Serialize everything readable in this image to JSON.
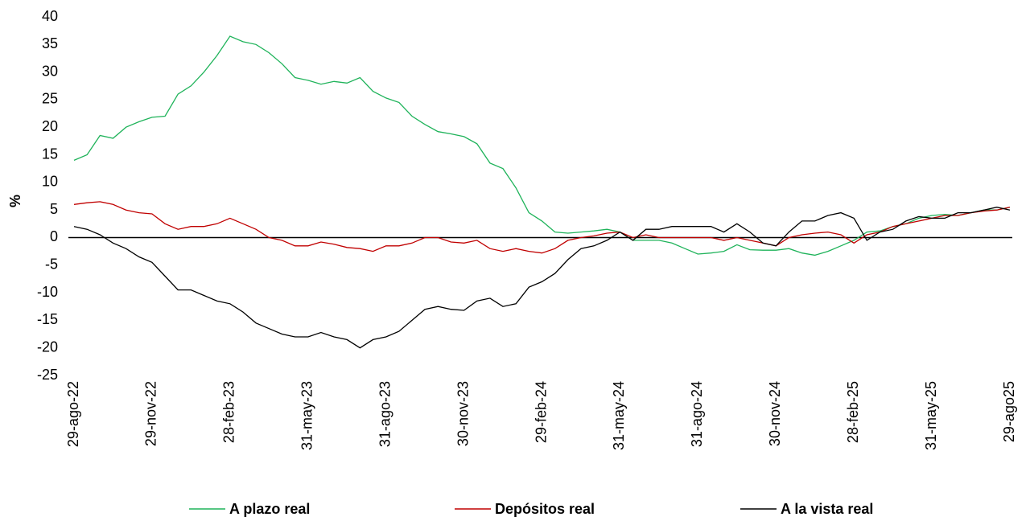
{
  "chart_data": {
    "type": "line",
    "y_label": "%",
    "categories": [
      "29-ago-22",
      null,
      null,
      null,
      null,
      null,
      "29-nov-22",
      null,
      null,
      null,
      null,
      null,
      "28-feb-23",
      null,
      null,
      null,
      null,
      null,
      "31-may-23",
      null,
      null,
      null,
      null,
      null,
      "31-ago-23",
      null,
      null,
      null,
      null,
      null,
      "30-nov-23",
      null,
      null,
      null,
      null,
      null,
      "29-feb-24",
      null,
      null,
      null,
      null,
      null,
      "31-may-24",
      null,
      null,
      null,
      null,
      null,
      "31-ago-24",
      null,
      null,
      null,
      null,
      null,
      "30-nov-24",
      null,
      null,
      null,
      null,
      null,
      "28-feb-25",
      null,
      null,
      null,
      null,
      null,
      "31-may-25",
      null,
      null,
      null,
      null,
      null,
      "29-ago25"
    ],
    "series": [
      {
        "name": "A plazo real",
        "color": "#1fb35a",
        "values": [
          14,
          15,
          18.5,
          18,
          20,
          21,
          21.8,
          22,
          26,
          27.5,
          30,
          33,
          36.5,
          35.5,
          35,
          33.5,
          31.5,
          29,
          28.5,
          27.8,
          28.3,
          28,
          29,
          26.5,
          25.3,
          24.5,
          22,
          20.5,
          19.2,
          18.8,
          18.3,
          17,
          13.5,
          12.5,
          9,
          4.5,
          3,
          1,
          0.8,
          1,
          1.2,
          1.5,
          1,
          -0.5,
          -0.5,
          -0.5,
          -1,
          -2,
          -3,
          -2.8,
          -2.5,
          -1.3,
          -2.2,
          -2.3,
          -2.3,
          -2,
          -2.8,
          -3.2,
          -2.5,
          -1.5,
          -0.5,
          1,
          1.2,
          2,
          2.5,
          3.5,
          4,
          4.2,
          4,
          4.5,
          5,
          5,
          5.5
        ]
      },
      {
        "name": "Depósitos real",
        "color": "#c00000",
        "values": [
          6,
          6.3,
          6.5,
          6,
          5,
          4.5,
          4.3,
          2.5,
          1.5,
          2,
          2,
          2.5,
          3.5,
          2.5,
          1.5,
          0,
          -0.5,
          -1.5,
          -1.5,
          -0.8,
          -1.2,
          -1.8,
          -2,
          -2.5,
          -1.5,
          -1.5,
          -1,
          0,
          0,
          -0.8,
          -1,
          -0.5,
          -2,
          -2.5,
          -2,
          -2.5,
          -2.8,
          -2,
          -0.5,
          0,
          0.3,
          0.8,
          1,
          0,
          0.5,
          0,
          0,
          0,
          0,
          0,
          -0.5,
          0,
          -0.5,
          -1,
          -1.5,
          0,
          0.5,
          0.8,
          1,
          0.5,
          -1,
          0.5,
          1,
          2,
          2.5,
          3,
          3.5,
          4,
          4,
          4.5,
          4.8,
          5,
          5.5
        ]
      },
      {
        "name": "A la vista real",
        "color": "#000000",
        "values": [
          2,
          1.5,
          0.5,
          -1,
          -2,
          -3.5,
          -4.5,
          -7,
          -9.5,
          -9.5,
          -10.5,
          -11.5,
          -12,
          -13.5,
          -15.5,
          -16.5,
          -17.5,
          -18,
          -18,
          -17.2,
          -18,
          -18.5,
          -20,
          -18.5,
          -18,
          -17,
          -15,
          -13,
          -12.5,
          -13,
          -13.2,
          -11.5,
          -11,
          -12.5,
          -12,
          -9,
          -8,
          -6.5,
          -4,
          -2,
          -1.5,
          -0.5,
          1,
          -0.5,
          1.5,
          1.5,
          2,
          2,
          2,
          2,
          1,
          2.5,
          1,
          -1,
          -1.5,
          1,
          3,
          3,
          4,
          4.5,
          3.5,
          -0.5,
          1,
          1.5,
          3,
          3.8,
          3.5,
          3.5,
          4.5,
          4.5,
          5,
          5.5,
          5
        ]
      }
    ],
    "ylim": [
      -25,
      40
    ],
    "yticks": [
      -25,
      -20,
      -15,
      -10,
      -5,
      0,
      5,
      10,
      15,
      20,
      25,
      30,
      35,
      40
    ],
    "legend": "bottom"
  }
}
